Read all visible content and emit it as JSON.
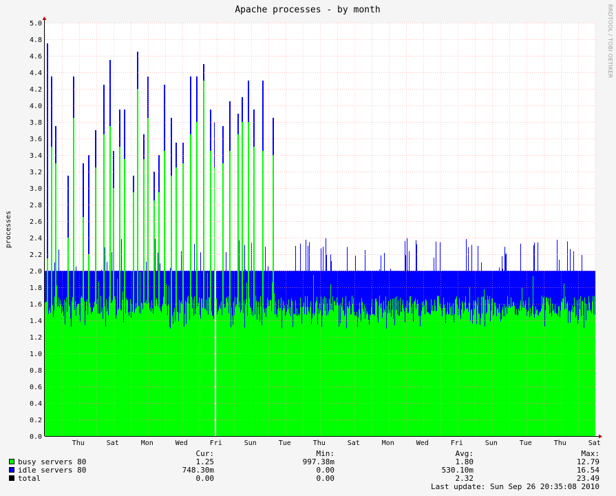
{
  "chart_data": {
    "type": "area",
    "title": "Apache processes - by month",
    "ylabel": "processes",
    "xlabel": "",
    "ylim": [
      0,
      5.0
    ],
    "yticks": [
      "0.0",
      "0.2",
      "0.4",
      "0.6",
      "0.8",
      "1.0",
      "1.2",
      "1.4",
      "1.6",
      "1.8",
      "2.0",
      "2.2",
      "2.4",
      "2.6",
      "2.8",
      "3.0",
      "3.2",
      "3.4",
      "3.6",
      "3.8",
      "4.0",
      "4.2",
      "4.4",
      "4.6",
      "4.8",
      "5.0"
    ],
    "xticks": [
      "Thu",
      "Sat",
      "Mon",
      "Wed",
      "Fri",
      "Sun",
      "Tue",
      "Thu",
      "Sat",
      "Mon",
      "Wed",
      "Fri",
      "Sun",
      "Tue",
      "Thu",
      "Sat"
    ],
    "stacked": true,
    "grid": true,
    "series": [
      {
        "name": "busy servers 80",
        "color": "#00ff00",
        "cur": "1.25",
        "min": "997.38m",
        "avg": "1.80",
        "max": "12.79"
      },
      {
        "name": "idle servers 80",
        "color": "#0000ff",
        "cur": "748.30m",
        "min": "0.00",
        "avg": "530.10m",
        "max": "16.54"
      },
      {
        "name": "total",
        "color": "#000000",
        "cur": "0.00",
        "min": "0.00",
        "avg": "2.32",
        "max": "23.49"
      }
    ],
    "stat_headers": [
      "Cur:",
      "Min:",
      "Avg:",
      "Max:"
    ],
    "spikes": [
      {
        "day": 0.1,
        "busy": 2.15,
        "total": 4.75
      },
      {
        "day": 0.35,
        "busy": 3.5,
        "total": 4.35
      },
      {
        "day": 0.6,
        "busy": 3.3,
        "total": 3.75
      },
      {
        "day": 1.3,
        "busy": 2.4,
        "total": 3.15
      },
      {
        "day": 1.65,
        "busy": 3.85,
        "total": 4.35
      },
      {
        "day": 2.2,
        "busy": 2.65,
        "total": 3.3
      },
      {
        "day": 2.5,
        "busy": 2.2,
        "total": 3.4
      },
      {
        "day": 2.9,
        "busy": 3.25,
        "total": 3.7
      },
      {
        "day": 3.4,
        "busy": 3.65,
        "total": 4.25
      },
      {
        "day": 3.75,
        "busy": 3.75,
        "total": 4.55
      },
      {
        "day": 3.95,
        "busy": 3.0,
        "total": 3.45
      },
      {
        "day": 4.3,
        "busy": 3.5,
        "total": 3.95
      },
      {
        "day": 4.6,
        "busy": 3.35,
        "total": 3.95
      },
      {
        "day": 5.1,
        "busy": 2.95,
        "total": 3.15
      },
      {
        "day": 5.35,
        "busy": 4.2,
        "total": 4.65
      },
      {
        "day": 5.7,
        "busy": 3.35,
        "total": 3.65
      },
      {
        "day": 5.95,
        "busy": 3.85,
        "total": 4.35
      },
      {
        "day": 6.3,
        "busy": 2.85,
        "total": 3.2
      },
      {
        "day": 6.6,
        "busy": 2.95,
        "total": 3.4
      },
      {
        "day": 6.9,
        "busy": 3.45,
        "total": 4.25
      },
      {
        "day": 7.3,
        "busy": 3.15,
        "total": 3.85
      },
      {
        "day": 7.6,
        "busy": 3.25,
        "total": 3.55
      },
      {
        "day": 8.0,
        "busy": 3.3,
        "total": 3.55
      },
      {
        "day": 8.45,
        "busy": 3.65,
        "total": 4.35
      },
      {
        "day": 8.8,
        "busy": 3.8,
        "total": 4.35
      },
      {
        "day": 9.2,
        "busy": 4.3,
        "total": 4.5
      },
      {
        "day": 9.6,
        "busy": 3.45,
        "total": 3.95
      },
      {
        "day": 9.85,
        "busy": 3.25,
        "total": 3.8
      },
      {
        "day": 10.3,
        "busy": 3.3,
        "total": 3.75
      },
      {
        "day": 10.7,
        "busy": 3.45,
        "total": 4.05
      },
      {
        "day": 11.2,
        "busy": 3.65,
        "total": 3.9
      },
      {
        "day": 11.45,
        "busy": 3.8,
        "total": 4.1
      },
      {
        "day": 11.8,
        "busy": 3.8,
        "total": 4.3
      },
      {
        "day": 12.1,
        "busy": 3.5,
        "total": 3.95
      },
      {
        "day": 12.65,
        "busy": 3.45,
        "total": 4.3
      },
      {
        "day": 13.25,
        "busy": 3.4,
        "total": 3.85
      }
    ],
    "gap_day": 9.9
  },
  "watermark": "RRDTOOL / TOBI OETIKER",
  "last_update": "Last update: Sun Sep 26 20:35:08 2010"
}
